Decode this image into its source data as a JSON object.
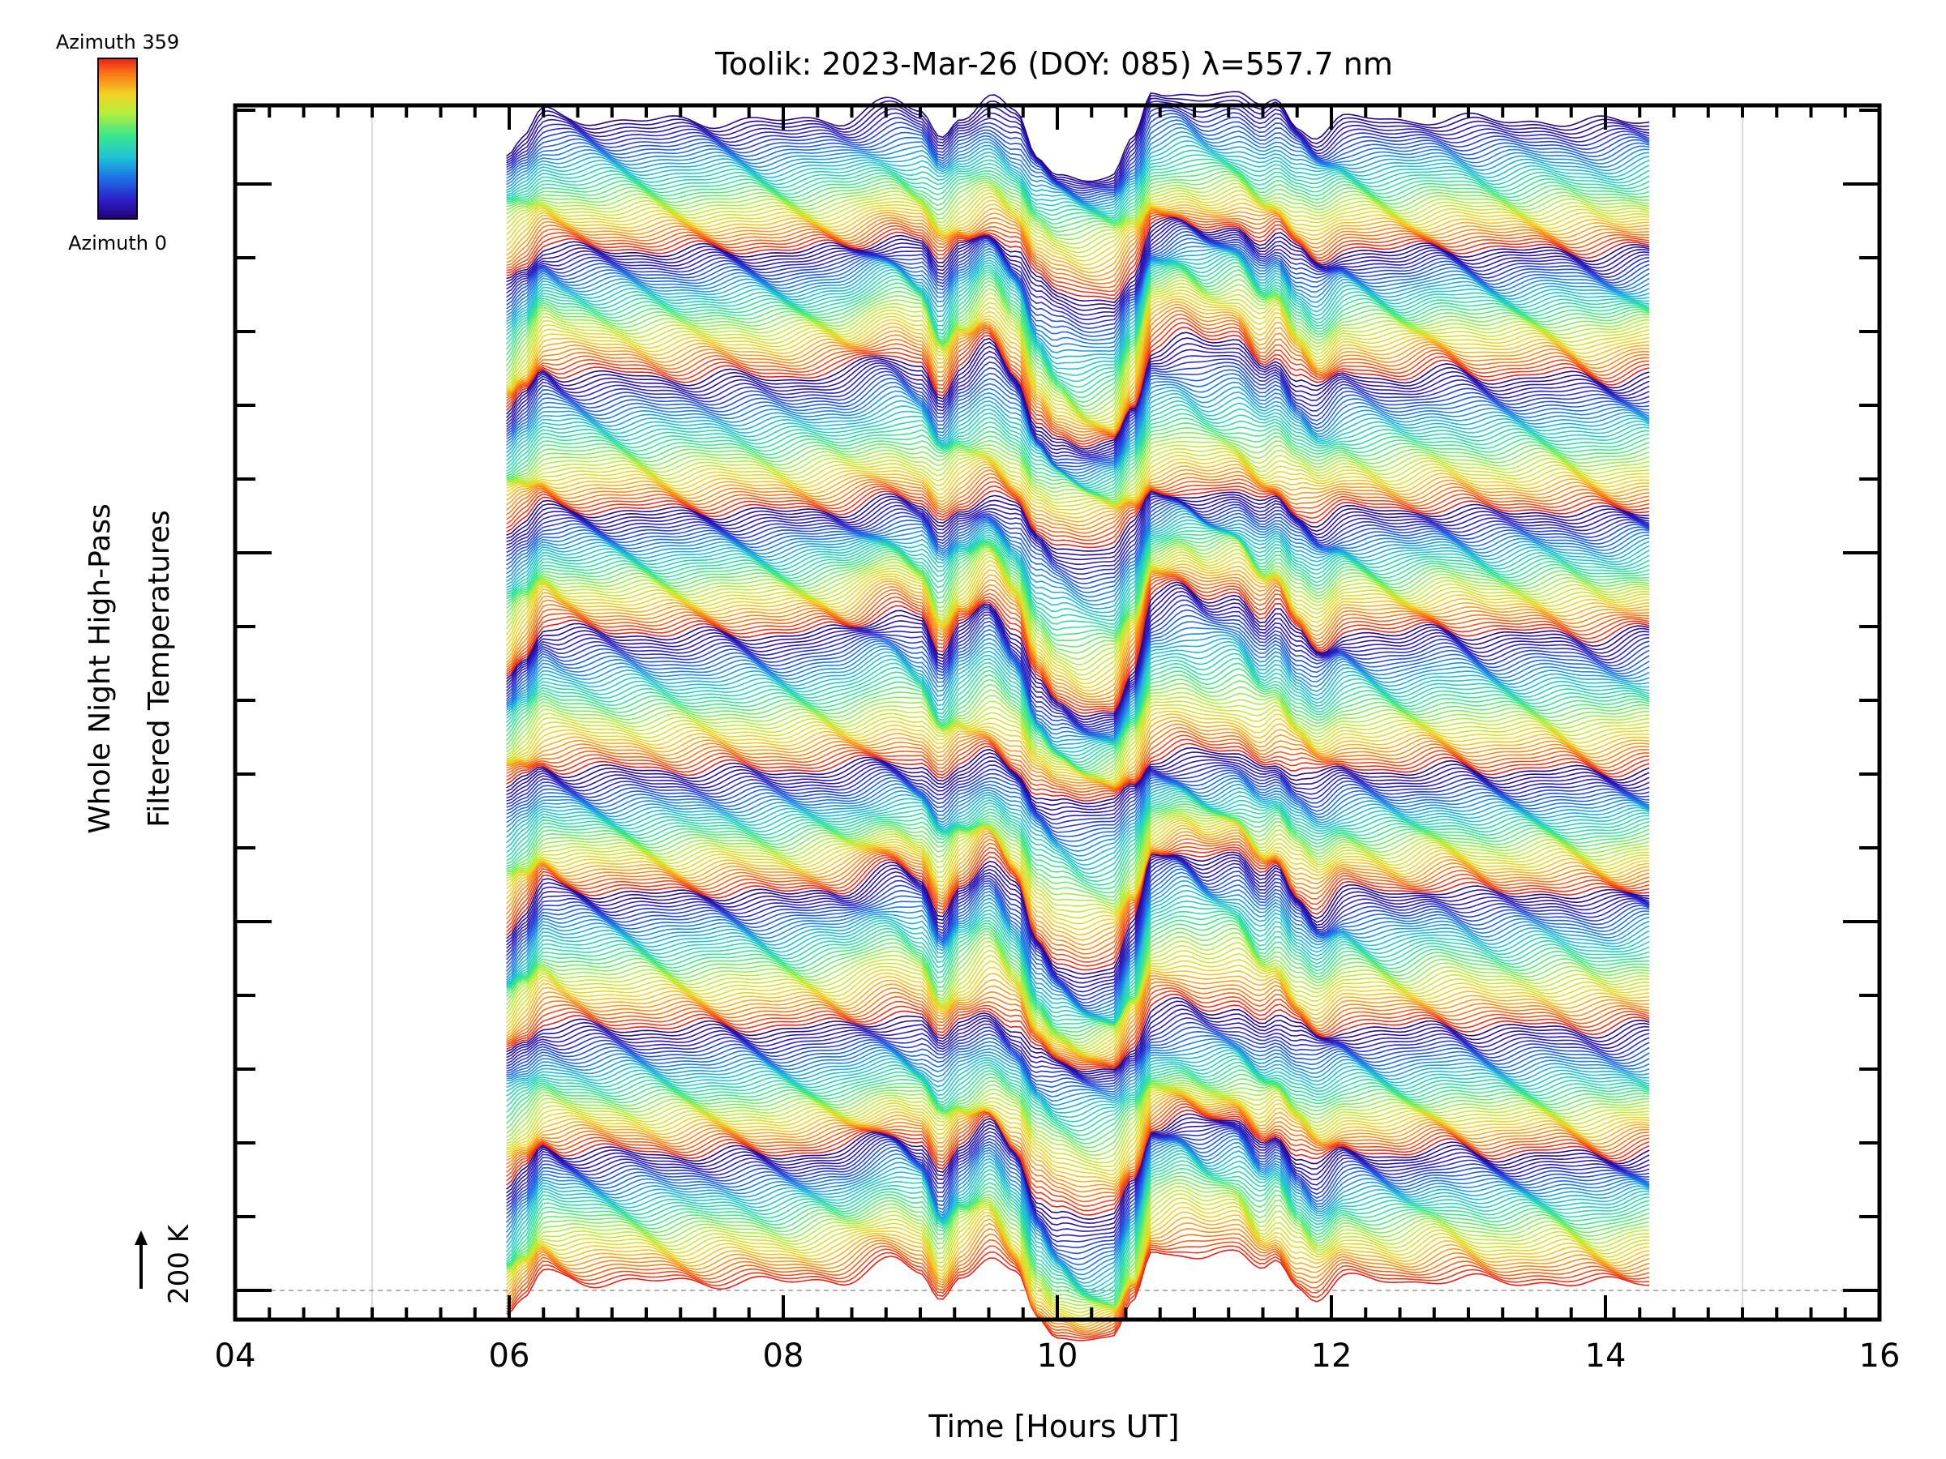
{
  "chart_data": {
    "type": "line",
    "title": "Toolik: 2023-Mar-26 (DOY: 085) λ=557.7 nm",
    "xlabel": "Time [Hours UT]",
    "ylabel_line1": "Whole Night High-Pass",
    "ylabel_line2": "Filtered Temperatures",
    "xlim": [
      4,
      16
    ],
    "x_ticks": [
      "04",
      "06",
      "08",
      "10",
      "12",
      "14",
      "16"
    ],
    "x_minor_step": 0.25,
    "vertical_gridlines_at": [
      5,
      15
    ],
    "grid": false,
    "data_time_range": [
      5.98,
      14.32
    ],
    "n_azimuth_traces": 360,
    "azimuth_range": [
      0,
      359
    ],
    "scale_bar": {
      "label": "200 K",
      "value": 200
    },
    "colorbar": {
      "top_label": "Azimuth 359",
      "bottom_label": "Azimuth 0",
      "colormap": "rainbow"
    },
    "series_profile": {
      "description": "360 azimuth traces offset vertically; shared temporal pattern",
      "t": [
        5.98,
        6.1,
        6.25,
        6.4,
        6.8,
        7.2,
        7.6,
        8.0,
        8.4,
        8.8,
        9.0,
        9.15,
        9.3,
        9.5,
        9.7,
        9.85,
        10.0,
        10.2,
        10.4,
        10.55,
        10.7,
        10.9,
        11.1,
        11.3,
        11.5,
        11.6,
        11.75,
        11.9,
        12.1,
        12.5,
        12.8,
        13.2,
        13.6,
        14.0,
        14.32
      ],
      "amplitude_K": [
        -60,
        -20,
        40,
        30,
        25,
        20,
        25,
        20,
        30,
        70,
        50,
        -20,
        40,
        90,
        30,
        -70,
        -110,
        -130,
        -120,
        -40,
        90,
        110,
        90,
        100,
        50,
        70,
        20,
        -10,
        30,
        20,
        35,
        20,
        25,
        15,
        30
      ]
    }
  }
}
